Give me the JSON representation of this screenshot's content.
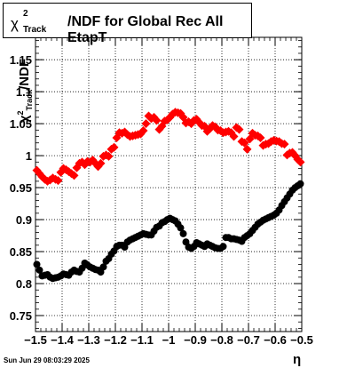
{
  "chart_data": {
    "type": "scatter",
    "title": "/NDF for Global Rec All EtapT",
    "title_symbol": "χ",
    "title_superscript": "2",
    "title_subscript": "Track",
    "ylabel_symbol": "χ",
    "ylabel_superscript": "2",
    "ylabel_subscript": "Track",
    "ylabel_suffix": "/NDF",
    "xlabel": "η",
    "xlim": [
      -1.5,
      -0.5
    ],
    "ylim": [
      0.725,
      1.185
    ],
    "grid": true,
    "x_ticks": [
      -1.5,
      -1.4,
      -1.3,
      -1.2,
      -1.1,
      -1.0,
      -0.9,
      -0.8,
      -0.7,
      -0.6,
      -0.5
    ],
    "x_tick_labels": [
      "−1.5",
      "−1.4",
      "−1.3",
      "−1.2",
      "−1.1",
      "−1",
      "−0.9",
      "−0.8",
      "−0.7",
      "−0.6",
      "−0.5"
    ],
    "y_ticks": [
      0.75,
      0.8,
      0.85,
      0.9,
      0.95,
      1.0,
      1.05,
      1.1,
      1.15
    ],
    "y_tick_labels": [
      "0.75",
      "0.8",
      "0.85",
      "0.9",
      "0.95",
      "1",
      "1.05",
      "1.1",
      "1.15"
    ],
    "series": [
      {
        "color": "#ff0000",
        "marker": "diamond",
        "x": [
          -1.495,
          -1.485,
          -1.475,
          -1.465,
          -1.455,
          -1.445,
          -1.435,
          -1.425,
          -1.415,
          -1.405,
          -1.395,
          -1.385,
          -1.375,
          -1.365,
          -1.355,
          -1.345,
          -1.335,
          -1.325,
          -1.315,
          -1.305,
          -1.295,
          -1.285,
          -1.275,
          -1.265,
          -1.255,
          -1.245,
          -1.235,
          -1.225,
          -1.215,
          -1.205,
          -1.195,
          -1.185,
          -1.175,
          -1.165,
          -1.155,
          -1.145,
          -1.135,
          -1.125,
          -1.115,
          -1.105,
          -1.095,
          -1.085,
          -1.075,
          -1.065,
          -1.055,
          -1.045,
          -1.035,
          -1.025,
          -1.015,
          -1.005,
          -0.995,
          -0.985,
          -0.975,
          -0.965,
          -0.955,
          -0.945,
          -0.935,
          -0.925,
          -0.915,
          -0.905,
          -0.895,
          -0.885,
          -0.875,
          -0.865,
          -0.855,
          -0.845,
          -0.835,
          -0.825,
          -0.815,
          -0.805,
          -0.795,
          -0.785,
          -0.775,
          -0.765,
          -0.755,
          -0.745,
          -0.735,
          -0.725,
          -0.715,
          -0.705,
          -0.695,
          -0.685,
          -0.675,
          -0.665,
          -0.655,
          -0.645,
          -0.635,
          -0.625,
          -0.615,
          -0.605,
          -0.595,
          -0.585,
          -0.575,
          -0.565,
          -0.555,
          -0.545,
          -0.535,
          -0.525,
          -0.515,
          -0.505
        ],
        "y": [
          0.977,
          0.972,
          0.967,
          0.963,
          0.96,
          0.962,
          0.965,
          0.963,
          0.961,
          0.974,
          0.98,
          0.978,
          0.975,
          0.972,
          0.969,
          0.981,
          0.988,
          0.99,
          0.986,
          0.991,
          0.99,
          0.993,
          0.988,
          0.983,
          0.988,
          0.999,
          1.001,
          0.999,
          1.01,
          1.013,
          1.028,
          1.036,
          1.035,
          1.037,
          1.033,
          1.03,
          1.031,
          1.032,
          1.033,
          1.034,
          1.039,
          1.05,
          1.062,
          1.058,
          1.06,
          1.055,
          1.041,
          1.046,
          1.054,
          1.056,
          1.06,
          1.065,
          1.068,
          1.067,
          1.066,
          1.06,
          1.051,
          1.053,
          1.05,
          1.055,
          1.057,
          1.052,
          1.047,
          1.046,
          1.038,
          1.042,
          1.047,
          1.045,
          1.04,
          1.039,
          1.036,
          1.037,
          1.038,
          1.036,
          1.03,
          1.044,
          1.041,
          1.022,
          1.02,
          1.01,
          1.026,
          1.035,
          1.032,
          1.031,
          1.028,
          1.016,
          1.018,
          1.019,
          1.022,
          1.024,
          1.023,
          1.022,
          1.019,
          1.018,
          1.001,
          1.004,
          1.005,
          1.0,
          0.994,
          0.99
        ]
      },
      {
        "color": "#000000",
        "marker": "circle",
        "x": [
          -1.495,
          -1.485,
          -1.475,
          -1.465,
          -1.455,
          -1.445,
          -1.435,
          -1.425,
          -1.415,
          -1.405,
          -1.395,
          -1.385,
          -1.375,
          -1.365,
          -1.355,
          -1.345,
          -1.335,
          -1.325,
          -1.315,
          -1.305,
          -1.295,
          -1.285,
          -1.275,
          -1.265,
          -1.255,
          -1.245,
          -1.235,
          -1.225,
          -1.215,
          -1.205,
          -1.195,
          -1.185,
          -1.175,
          -1.165,
          -1.155,
          -1.145,
          -1.135,
          -1.125,
          -1.115,
          -1.105,
          -1.095,
          -1.085,
          -1.075,
          -1.065,
          -1.055,
          -1.045,
          -1.035,
          -1.025,
          -1.015,
          -1.005,
          -0.995,
          -0.985,
          -0.975,
          -0.965,
          -0.955,
          -0.945,
          -0.935,
          -0.925,
          -0.915,
          -0.905,
          -0.895,
          -0.885,
          -0.875,
          -0.865,
          -0.855,
          -0.845,
          -0.835,
          -0.825,
          -0.815,
          -0.805,
          -0.795,
          -0.785,
          -0.775,
          -0.765,
          -0.755,
          -0.745,
          -0.735,
          -0.725,
          -0.715,
          -0.705,
          -0.695,
          -0.685,
          -0.675,
          -0.665,
          -0.655,
          -0.645,
          -0.635,
          -0.625,
          -0.615,
          -0.605,
          -0.595,
          -0.585,
          -0.575,
          -0.565,
          -0.555,
          -0.545,
          -0.535,
          -0.525,
          -0.515,
          -0.505
        ],
        "y": [
          0.83,
          0.821,
          0.812,
          0.813,
          0.814,
          0.81,
          0.808,
          0.809,
          0.81,
          0.812,
          0.815,
          0.814,
          0.813,
          0.818,
          0.821,
          0.819,
          0.818,
          0.824,
          0.832,
          0.829,
          0.826,
          0.824,
          0.822,
          0.821,
          0.818,
          0.826,
          0.835,
          0.839,
          0.846,
          0.851,
          0.858,
          0.86,
          0.86,
          0.857,
          0.865,
          0.868,
          0.87,
          0.872,
          0.874,
          0.876,
          0.878,
          0.877,
          0.876,
          0.876,
          0.882,
          0.888,
          0.89,
          0.895,
          0.897,
          0.9,
          0.902,
          0.9,
          0.898,
          0.893,
          0.887,
          0.878,
          0.865,
          0.857,
          0.855,
          0.858,
          0.864,
          0.862,
          0.86,
          0.858,
          0.862,
          0.86,
          0.858,
          0.856,
          0.855,
          0.855,
          0.858,
          0.872,
          0.872,
          0.87,
          0.87,
          0.869,
          0.868,
          0.866,
          0.872,
          0.875,
          0.878,
          0.883,
          0.888,
          0.893,
          0.896,
          0.899,
          0.901,
          0.903,
          0.905,
          0.907,
          0.91,
          0.915,
          0.922,
          0.928,
          0.934,
          0.94,
          0.946,
          0.95,
          0.953,
          0.956
        ]
      }
    ],
    "timestamp": "Sun Jun 29 08:03:29 2025"
  }
}
